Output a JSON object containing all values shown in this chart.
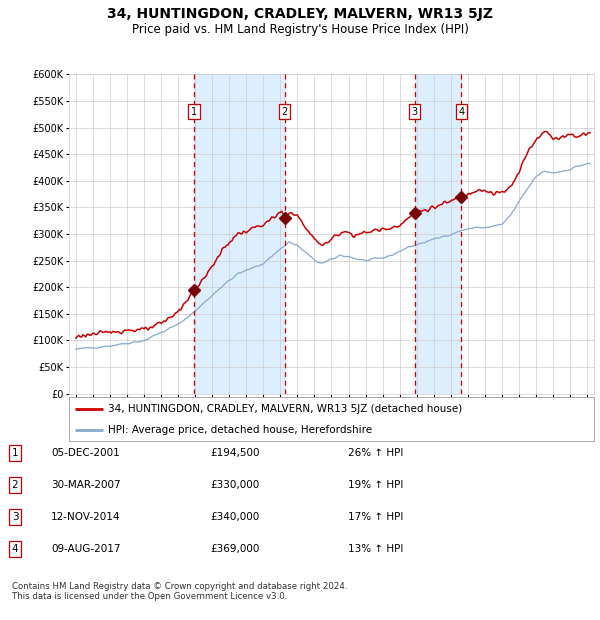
{
  "title": "34, HUNTINGDON, CRADLEY, MALVERN, WR13 5JZ",
  "subtitle": "Price paid vs. HM Land Registry's House Price Index (HPI)",
  "footer": "Contains HM Land Registry data © Crown copyright and database right 2024.\nThis data is licensed under the Open Government Licence v3.0.",
  "legend_line1": "34, HUNTINGDON, CRADLEY, MALVERN, WR13 5JZ (detached house)",
  "legend_line2": "HPI: Average price, detached house, Herefordshire",
  "sale_events": [
    {
      "num": 1,
      "date": "05-DEC-2001",
      "price": "£194,500",
      "hpi": "26% ↑ HPI",
      "year": 2001.92
    },
    {
      "num": 2,
      "date": "30-MAR-2007",
      "price": "£330,000",
      "hpi": "19% ↑ HPI",
      "year": 2007.25
    },
    {
      "num": 3,
      "date": "12-NOV-2014",
      "price": "£340,000",
      "hpi": "17% ↑ HPI",
      "year": 2014.87
    },
    {
      "num": 4,
      "date": "09-AUG-2017",
      "price": "£369,000",
      "hpi": "13% ↑ HPI",
      "year": 2017.62
    }
  ],
  "sale_prices": [
    194500,
    330000,
    340000,
    369000
  ],
  "ylim": [
    0,
    600000
  ],
  "yticks": [
    0,
    50000,
    100000,
    150000,
    200000,
    250000,
    300000,
    350000,
    400000,
    450000,
    500000,
    550000,
    600000
  ],
  "xlim_start": 1994.6,
  "xlim_end": 2025.4,
  "red_line_color": "#cc0000",
  "blue_line_color": "#88aacc",
  "blue_fill_color": "#ddeeff",
  "dashed_color": "#cc0000",
  "background_color": "#ffffff",
  "grid_color": "#cccccc",
  "title_fontsize": 10,
  "subtitle_fontsize": 8.5,
  "table_rows": [
    [
      1,
      "05-DEC-2001",
      "£194,500",
      "26% ↑ HPI"
    ],
    [
      2,
      "30-MAR-2007",
      "£330,000",
      "19% ↑ HPI"
    ],
    [
      3,
      "12-NOV-2014",
      "£340,000",
      "17% ↑ HPI"
    ],
    [
      4,
      "09-AUG-2017",
      "£369,000",
      "13% ↑ HPI"
    ]
  ]
}
